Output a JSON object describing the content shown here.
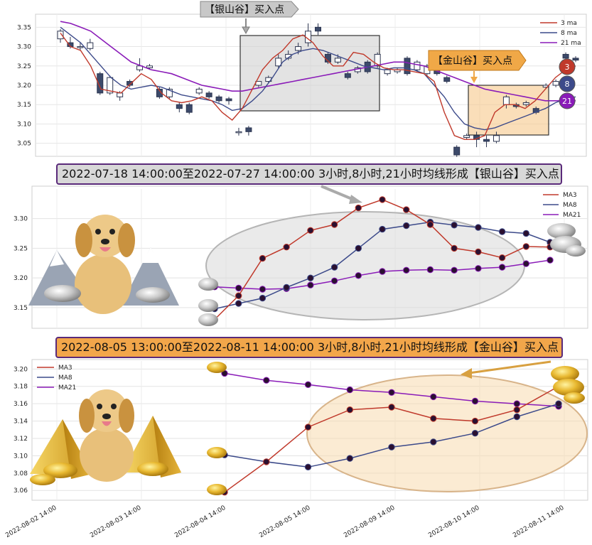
{
  "top_chart": {
    "chart_data": {
      "type": "candlestick",
      "y_ticks": [
        "3.05",
        "3.10",
        "3.15",
        "3.20",
        "3.25",
        "3.30",
        "3.35"
      ],
      "ylim": [
        3.02,
        3.38
      ],
      "legend": [
        "3 ma",
        "8 ma",
        "21 ma"
      ],
      "series_colors": {
        "ma3": "#c0392b",
        "ma8": "#3c4a8a",
        "ma21": "#8a1bb8"
      },
      "candles": [
        {
          "o": 3.32,
          "c": 3.34,
          "h": 3.345,
          "l": 3.31
        },
        {
          "o": 3.31,
          "c": 3.3,
          "h": 3.325,
          "l": 3.295
        },
        {
          "o": 3.3,
          "c": 3.3,
          "h": 3.31,
          "l": 3.29
        },
        {
          "o": 3.295,
          "c": 3.31,
          "h": 3.32,
          "l": 3.29
        },
        {
          "o": 3.23,
          "c": 3.18,
          "h": 3.235,
          "l": 3.175
        },
        {
          "o": 3.18,
          "c": 3.22,
          "h": 3.225,
          "l": 3.175
        },
        {
          "o": 3.17,
          "c": 3.18,
          "h": 3.185,
          "l": 3.16
        },
        {
          "o": 3.21,
          "c": 3.2,
          "h": 3.215,
          "l": 3.195
        },
        {
          "o": 3.24,
          "c": 3.25,
          "h": 3.27,
          "l": 3.235
        },
        {
          "o": 3.245,
          "c": 3.25,
          "h": 3.255,
          "l": 3.24
        },
        {
          "o": 3.19,
          "c": 3.17,
          "h": 3.195,
          "l": 3.165
        },
        {
          "o": 3.17,
          "c": 3.19,
          "h": 3.195,
          "l": 3.165
        },
        {
          "o": 3.15,
          "c": 3.14,
          "h": 3.155,
          "l": 3.13
        },
        {
          "o": 3.15,
          "c": 3.13,
          "h": 3.155,
          "l": 3.125
        },
        {
          "o": 3.18,
          "c": 3.19,
          "h": 3.195,
          "l": 3.175
        },
        {
          "o": 3.18,
          "c": 3.17,
          "h": 3.185,
          "l": 3.165
        },
        {
          "o": 3.17,
          "c": 3.16,
          "h": 3.175,
          "l": 3.155
        },
        {
          "o": 3.165,
          "c": 3.16,
          "h": 3.17,
          "l": 3.15
        },
        {
          "o": 3.08,
          "c": 3.08,
          "h": 3.09,
          "l": 3.07
        },
        {
          "o": 3.09,
          "c": 3.08,
          "h": 3.095,
          "l": 3.07
        },
        {
          "o": 3.2,
          "c": 3.21,
          "h": 3.21,
          "l": 3.195
        },
        {
          "o": 3.21,
          "c": 3.22,
          "h": 3.225,
          "l": 3.205
        },
        {
          "o": 3.25,
          "c": 3.27,
          "h": 3.28,
          "l": 3.245
        },
        {
          "o": 3.27,
          "c": 3.28,
          "h": 3.29,
          "l": 3.265
        },
        {
          "o": 3.29,
          "c": 3.3,
          "h": 3.31,
          "l": 3.28
        },
        {
          "o": 3.31,
          "c": 3.34,
          "h": 3.36,
          "l": 3.3
        },
        {
          "o": 3.35,
          "c": 3.34,
          "h": 3.36,
          "l": 3.33
        },
        {
          "o": 3.28,
          "c": 3.26,
          "h": 3.285,
          "l": 3.255
        },
        {
          "o": 3.26,
          "c": 3.27,
          "h": 3.28,
          "l": 3.255
        },
        {
          "o": 3.23,
          "c": 3.22,
          "h": 3.235,
          "l": 3.215
        },
        {
          "o": 3.235,
          "c": 3.245,
          "h": 3.25,
          "l": 3.23
        },
        {
          "o": 3.26,
          "c": 3.235,
          "h": 3.265,
          "l": 3.23
        },
        {
          "o": 3.25,
          "c": 3.28,
          "h": 3.285,
          "l": 3.245
        },
        {
          "o": 3.23,
          "c": 3.24,
          "h": 3.245,
          "l": 3.225
        },
        {
          "o": 3.235,
          "c": 3.24,
          "h": 3.245,
          "l": 3.23
        },
        {
          "o": 3.27,
          "c": 3.23,
          "h": 3.275,
          "l": 3.225
        },
        {
          "o": 3.24,
          "c": 3.26,
          "h": 3.265,
          "l": 3.235
        },
        {
          "o": 3.23,
          "c": 3.25,
          "h": 3.255,
          "l": 3.225
        },
        {
          "o": 3.26,
          "c": 3.23,
          "h": 3.265,
          "l": 3.225
        },
        {
          "o": 3.22,
          "c": 3.21,
          "h": 3.225,
          "l": 3.205
        },
        {
          "o": 3.04,
          "c": 3.02,
          "h": 3.045,
          "l": 3.015
        },
        {
          "o": 3.065,
          "c": 3.07,
          "h": 3.075,
          "l": 3.06
        },
        {
          "o": 3.07,
          "c": 3.06,
          "h": 3.08,
          "l": 3.04
        },
        {
          "o": 3.06,
          "c": 3.055,
          "h": 3.07,
          "l": 3.04
        },
        {
          "o": 3.055,
          "c": 3.07,
          "h": 3.08,
          "l": 3.05
        },
        {
          "o": 3.15,
          "c": 3.17,
          "h": 3.175,
          "l": 3.14
        },
        {
          "o": 3.15,
          "c": 3.145,
          "h": 3.155,
          "l": 3.14
        },
        {
          "o": 3.15,
          "c": 3.155,
          "h": 3.16,
          "l": 3.145
        },
        {
          "o": 3.14,
          "c": 3.13,
          "h": 3.145,
          "l": 3.125
        },
        {
          "o": 3.195,
          "c": 3.2,
          "h": 3.205,
          "l": 3.19
        },
        {
          "o": 3.2,
          "c": 3.21,
          "h": 3.215,
          "l": 3.195
        },
        {
          "o": 3.28,
          "c": 3.27,
          "h": 3.285,
          "l": 3.265
        },
        {
          "o": 3.27,
          "c": 3.265,
          "h": 3.275,
          "l": 3.26
        }
      ],
      "ma3": [
        3.335,
        3.3,
        3.29,
        3.25,
        3.19,
        3.185,
        3.18,
        3.205,
        3.23,
        3.215,
        3.18,
        3.16,
        3.155,
        3.16,
        3.17,
        3.16,
        3.13,
        3.11,
        3.14,
        3.19,
        3.24,
        3.27,
        3.29,
        3.32,
        3.33,
        3.31,
        3.275,
        3.25,
        3.25,
        3.285,
        3.28,
        3.26,
        3.245,
        3.24,
        3.24,
        3.235,
        3.23,
        3.21,
        3.13,
        3.07,
        3.06,
        3.06,
        3.07,
        3.13,
        3.15,
        3.15,
        3.14,
        3.16,
        3.19,
        3.22,
        3.24,
        3.25
      ],
      "ma8": [
        3.35,
        3.33,
        3.31,
        3.28,
        3.25,
        3.22,
        3.2,
        3.19,
        3.195,
        3.2,
        3.195,
        3.185,
        3.175,
        3.17,
        3.165,
        3.16,
        3.15,
        3.135,
        3.14,
        3.16,
        3.185,
        3.22,
        3.26,
        3.28,
        3.29,
        3.295,
        3.29,
        3.28,
        3.27,
        3.26,
        3.25,
        3.245,
        3.24,
        3.245,
        3.245,
        3.24,
        3.23,
        3.2,
        3.17,
        3.13,
        3.1,
        3.09,
        3.085,
        3.09,
        3.1,
        3.11,
        3.12,
        3.13,
        3.14,
        3.155,
        3.165,
        3.17
      ],
      "ma21": [
        3.365,
        3.36,
        3.35,
        3.34,
        3.32,
        3.3,
        3.28,
        3.26,
        3.25,
        3.24,
        3.235,
        3.23,
        3.22,
        3.21,
        3.2,
        3.195,
        3.19,
        3.185,
        3.185,
        3.19,
        3.195,
        3.2,
        3.205,
        3.21,
        3.215,
        3.22,
        3.225,
        3.23,
        3.235,
        3.24,
        3.245,
        3.25,
        3.255,
        3.26,
        3.26,
        3.255,
        3.25,
        3.24,
        3.23,
        3.22,
        3.21,
        3.2,
        3.19,
        3.185,
        3.18,
        3.175,
        3.17,
        3.165,
        3.16,
        3.16,
        3.16,
        3.16
      ],
      "badges": [
        "3",
        "8",
        "21"
      ],
      "silver_label": "【银山谷】买入点",
      "gold_label": "【金山谷】买入点"
    }
  },
  "mid_title": "2022-07-18 14:00:00至2022-07-27 14:00:00 3小时,8小时,21小时均线形成【银山谷】买入点",
  "mid_chart": {
    "chart_data": {
      "type": "line",
      "y_ticks": [
        "3.15",
        "3.20",
        "3.25",
        "3.30"
      ],
      "ylim": [
        3.12,
        3.345
      ],
      "legend": [
        "MA3",
        "MA8",
        "MA21"
      ],
      "ma3": [
        3.13,
        3.17,
        3.233,
        3.252,
        3.28,
        3.29,
        3.318,
        3.332,
        3.315,
        3.29,
        3.25,
        3.244,
        3.234,
        3.253,
        3.252
      ],
      "ma8": [
        3.148,
        3.157,
        3.166,
        3.184,
        3.2,
        3.218,
        3.25,
        3.282,
        3.288,
        3.294,
        3.289,
        3.285,
        3.278,
        3.275,
        3.26
      ],
      "ma21": [
        3.185,
        3.183,
        3.181,
        3.182,
        3.188,
        3.195,
        3.204,
        3.211,
        3.213,
        3.214,
        3.213,
        3.216,
        3.218,
        3.224,
        3.23
      ]
    }
  },
  "bottom_title": "2022-08-05 13:00:00至2022-08-11 14:00:00 3小时,8小时,21小时均线形成【金山谷】买入点",
  "bottom_chart": {
    "chart_data": {
      "type": "line",
      "y_ticks": [
        "3.06",
        "3.08",
        "3.10",
        "3.12",
        "3.14",
        "3.16",
        "3.18",
        "3.20"
      ],
      "ylim": [
        3.052,
        3.206
      ],
      "legend": [
        "MA3",
        "MA8",
        "MA21"
      ],
      "ma3": [
        3.058,
        3.093,
        3.133,
        3.153,
        3.156,
        3.143,
        3.14,
        3.153,
        3.18
      ],
      "ma8": [
        3.101,
        3.093,
        3.087,
        3.097,
        3.11,
        3.116,
        3.126,
        3.145,
        3.16
      ],
      "ma21": [
        3.195,
        3.187,
        3.182,
        3.176,
        3.173,
        3.168,
        3.163,
        3.16,
        3.157
      ]
    }
  },
  "x_dates": [
    "2022-08-02 14:00",
    "2022-08-03 14:00",
    "2022-08-04 14:00",
    "2022-08-05 14:00",
    "2022-08-09 14:00",
    "2022-08-10 14:00",
    "2022-08-11 14:00"
  ]
}
